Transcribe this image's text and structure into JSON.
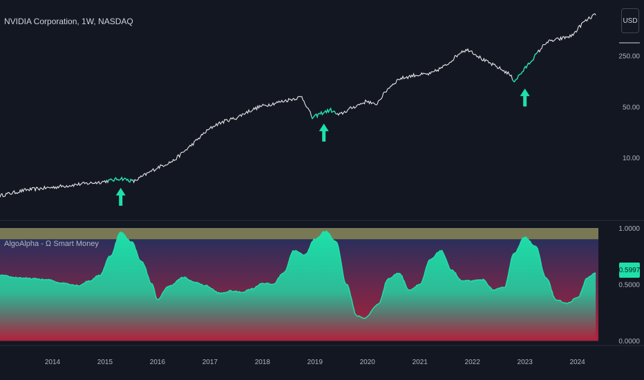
{
  "header": {
    "symbol_title": "NVIDIA Corporation, 1W, NASDAQ",
    "currency_button": "USD"
  },
  "indicator": {
    "title": "AlgoAlpha - Ω Smart Money",
    "current_value_badge": "0.5997"
  },
  "colors": {
    "background": "#131722",
    "price_line": "#e8e8e8",
    "signal_highlight": "#1fe0a9",
    "arrow": "#1fe0a9",
    "oscillator_fill": "#1fe0a9",
    "overbought_band": "#8b8a5e",
    "gradient_top": "#2a2f5c",
    "gradient_bottom": "#b3203a",
    "zero_line": "#8b2a3a"
  },
  "chart_data": [
    {
      "type": "line",
      "title": "NVIDIA Corporation, 1W, NASDAQ",
      "xlabel": "",
      "ylabel": "",
      "scale": "log",
      "ylim": [
        1.5,
        1300
      ],
      "y_ticks": [
        {
          "value": 10,
          "label": "10.00"
        },
        {
          "value": 50,
          "label": "50.00"
        },
        {
          "value": 250,
          "label": "250.00"
        }
      ],
      "x_ticks": [
        "2014",
        "2015",
        "2016",
        "2017",
        "2018",
        "2019",
        "2020",
        "2021",
        "2022",
        "2023",
        "2024"
      ],
      "series": [
        {
          "points": [
            [
              2013.0,
              3.0
            ],
            [
              2013.5,
              3.6
            ],
            [
              2014.0,
              3.9
            ],
            [
              2014.5,
              4.3
            ],
            [
              2014.9,
              4.6
            ],
            [
              2015.15,
              4.9
            ],
            [
              2015.3,
              5.2
            ],
            [
              2015.55,
              4.7
            ],
            [
              2015.8,
              6.0
            ],
            [
              2016.0,
              7.3
            ],
            [
              2016.3,
              9.0
            ],
            [
              2016.5,
              12.0
            ],
            [
              2016.7,
              16.0
            ],
            [
              2016.9,
              22.0
            ],
            [
              2017.1,
              28.0
            ],
            [
              2017.3,
              32.0
            ],
            [
              2017.5,
              35.0
            ],
            [
              2017.7,
              42.0
            ],
            [
              2017.95,
              50.0
            ],
            [
              2018.2,
              55.0
            ],
            [
              2018.5,
              62.0
            ],
            [
              2018.75,
              68.0
            ],
            [
              2018.85,
              50.0
            ],
            [
              2018.95,
              35.0
            ],
            [
              2019.1,
              40.0
            ],
            [
              2019.3,
              45.0
            ],
            [
              2019.45,
              38.0
            ],
            [
              2019.7,
              48.0
            ],
            [
              2020.0,
              60.0
            ],
            [
              2020.15,
              52.0
            ],
            [
              2020.4,
              90.0
            ],
            [
              2020.6,
              120.0
            ],
            [
              2020.9,
              135.0
            ],
            [
              2021.2,
              140.0
            ],
            [
              2021.5,
              185.0
            ],
            [
              2021.8,
              290.0
            ],
            [
              2021.95,
              300.0
            ],
            [
              2022.2,
              220.0
            ],
            [
              2022.5,
              170.0
            ],
            [
              2022.7,
              140.0
            ],
            [
              2022.8,
              112.0
            ],
            [
              2022.95,
              150.0
            ],
            [
              2023.2,
              250.0
            ],
            [
              2023.4,
              380.0
            ],
            [
              2023.7,
              430.0
            ],
            [
              2023.9,
              470.0
            ],
            [
              2024.1,
              700.0
            ],
            [
              2024.3,
              880.0
            ],
            [
              2024.35,
              900.0
            ]
          ]
        }
      ],
      "signals": [
        {
          "x": 2015.3,
          "y": 5.0,
          "marker": "up-arrow"
        },
        {
          "x": 2019.17,
          "y": 38.0,
          "marker": "up-arrow"
        },
        {
          "x": 2023.0,
          "y": 115.0,
          "marker": "up-arrow"
        }
      ]
    },
    {
      "type": "area",
      "title": "AlgoAlpha - Ω Smart Money",
      "xlabel": "",
      "ylabel": "",
      "ylim": [
        0,
        1
      ],
      "y_ticks": [
        {
          "value": 1.0,
          "label": "1.0000"
        },
        {
          "value": 0.5,
          "label": "0.5000"
        },
        {
          "value": 0.0,
          "label": "0.0000"
        }
      ],
      "bands": [
        {
          "from": 0.9,
          "to": 1.0,
          "label": ""
        }
      ],
      "series": [
        {
          "points": [
            [
              2013.0,
              0.58
            ],
            [
              2013.3,
              0.56
            ],
            [
              2013.6,
              0.55
            ],
            [
              2013.9,
              0.54
            ],
            [
              2014.2,
              0.51
            ],
            [
              2014.5,
              0.49
            ],
            [
              2014.7,
              0.53
            ],
            [
              2014.9,
              0.58
            ],
            [
              2015.1,
              0.75
            ],
            [
              2015.3,
              0.96
            ],
            [
              2015.5,
              0.88
            ],
            [
              2015.7,
              0.7
            ],
            [
              2015.9,
              0.5
            ],
            [
              2016.0,
              0.36
            ],
            [
              2016.2,
              0.48
            ],
            [
              2016.5,
              0.56
            ],
            [
              2016.7,
              0.52
            ],
            [
              2016.9,
              0.49
            ],
            [
              2017.2,
              0.42
            ],
            [
              2017.4,
              0.44
            ],
            [
              2017.6,
              0.43
            ],
            [
              2017.8,
              0.46
            ],
            [
              2018.0,
              0.51
            ],
            [
              2018.2,
              0.5
            ],
            [
              2018.4,
              0.6
            ],
            [
              2018.6,
              0.8
            ],
            [
              2018.8,
              0.76
            ],
            [
              2019.0,
              0.9
            ],
            [
              2019.2,
              0.97
            ],
            [
              2019.4,
              0.88
            ],
            [
              2019.6,
              0.5
            ],
            [
              2019.8,
              0.22
            ],
            [
              2019.95,
              0.2
            ],
            [
              2020.2,
              0.32
            ],
            [
              2020.4,
              0.55
            ],
            [
              2020.6,
              0.6
            ],
            [
              2020.8,
              0.45
            ],
            [
              2021.0,
              0.5
            ],
            [
              2021.2,
              0.72
            ],
            [
              2021.4,
              0.8
            ],
            [
              2021.6,
              0.63
            ],
            [
              2021.8,
              0.53
            ],
            [
              2022.0,
              0.53
            ],
            [
              2022.2,
              0.54
            ],
            [
              2022.4,
              0.45
            ],
            [
              2022.6,
              0.47
            ],
            [
              2022.8,
              0.78
            ],
            [
              2023.0,
              0.92
            ],
            [
              2023.2,
              0.84
            ],
            [
              2023.4,
              0.56
            ],
            [
              2023.6,
              0.36
            ],
            [
              2023.8,
              0.33
            ],
            [
              2024.0,
              0.38
            ],
            [
              2024.2,
              0.56
            ],
            [
              2024.35,
              0.6
            ]
          ]
        }
      ]
    }
  ]
}
